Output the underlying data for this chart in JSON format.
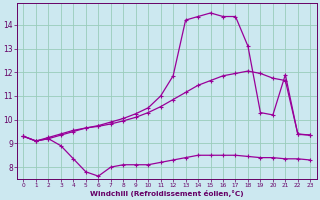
{
  "background_color": "#cce8f0",
  "grid_color": "#99ccbb",
  "line_color": "#990099",
  "xlabel": "Windchill (Refroidissement éolien,°C)",
  "xlim": [
    -0.5,
    23.5
  ],
  "ylim": [
    7.5,
    14.9
  ],
  "yticks": [
    8,
    9,
    10,
    11,
    12,
    13,
    14
  ],
  "xticks": [
    0,
    1,
    2,
    3,
    4,
    5,
    6,
    7,
    8,
    9,
    10,
    11,
    12,
    13,
    14,
    15,
    16,
    17,
    18,
    19,
    20,
    21,
    22,
    23
  ],
  "line1_x": [
    0,
    1,
    2,
    3,
    4,
    5,
    6,
    7,
    8,
    9,
    10,
    11,
    12,
    13,
    14,
    15,
    16,
    17,
    18,
    19,
    20,
    21,
    22,
    23
  ],
  "line1_y": [
    9.3,
    9.1,
    9.2,
    8.9,
    8.35,
    7.8,
    7.62,
    8.0,
    8.1,
    8.1,
    8.1,
    8.2,
    8.3,
    8.4,
    8.5,
    8.5,
    8.5,
    8.5,
    8.45,
    8.4,
    8.4,
    8.35,
    8.35,
    8.3
  ],
  "line2_x": [
    0,
    1,
    2,
    3,
    4,
    5,
    6,
    7,
    8,
    9,
    10,
    11,
    12,
    13,
    14,
    15,
    16,
    17,
    18,
    19,
    20,
    21,
    22,
    23
  ],
  "line2_y": [
    9.3,
    9.1,
    9.25,
    9.4,
    9.55,
    9.65,
    9.72,
    9.82,
    9.95,
    10.1,
    10.3,
    10.55,
    10.85,
    11.15,
    11.45,
    11.65,
    11.85,
    11.95,
    12.05,
    11.95,
    11.75,
    11.65,
    9.4,
    9.35
  ],
  "line3_x": [
    0,
    1,
    2,
    3,
    4,
    5,
    6,
    7,
    8,
    9,
    10,
    11,
    12,
    13,
    14,
    15,
    16,
    17,
    18,
    19,
    20,
    21,
    22,
    23
  ],
  "line3_y": [
    9.3,
    9.1,
    9.2,
    9.35,
    9.5,
    9.65,
    9.75,
    9.9,
    10.05,
    10.25,
    10.5,
    11.0,
    11.85,
    14.2,
    14.35,
    14.5,
    14.35,
    14.35,
    13.1,
    10.3,
    10.2,
    11.9,
    9.38,
    9.35
  ]
}
